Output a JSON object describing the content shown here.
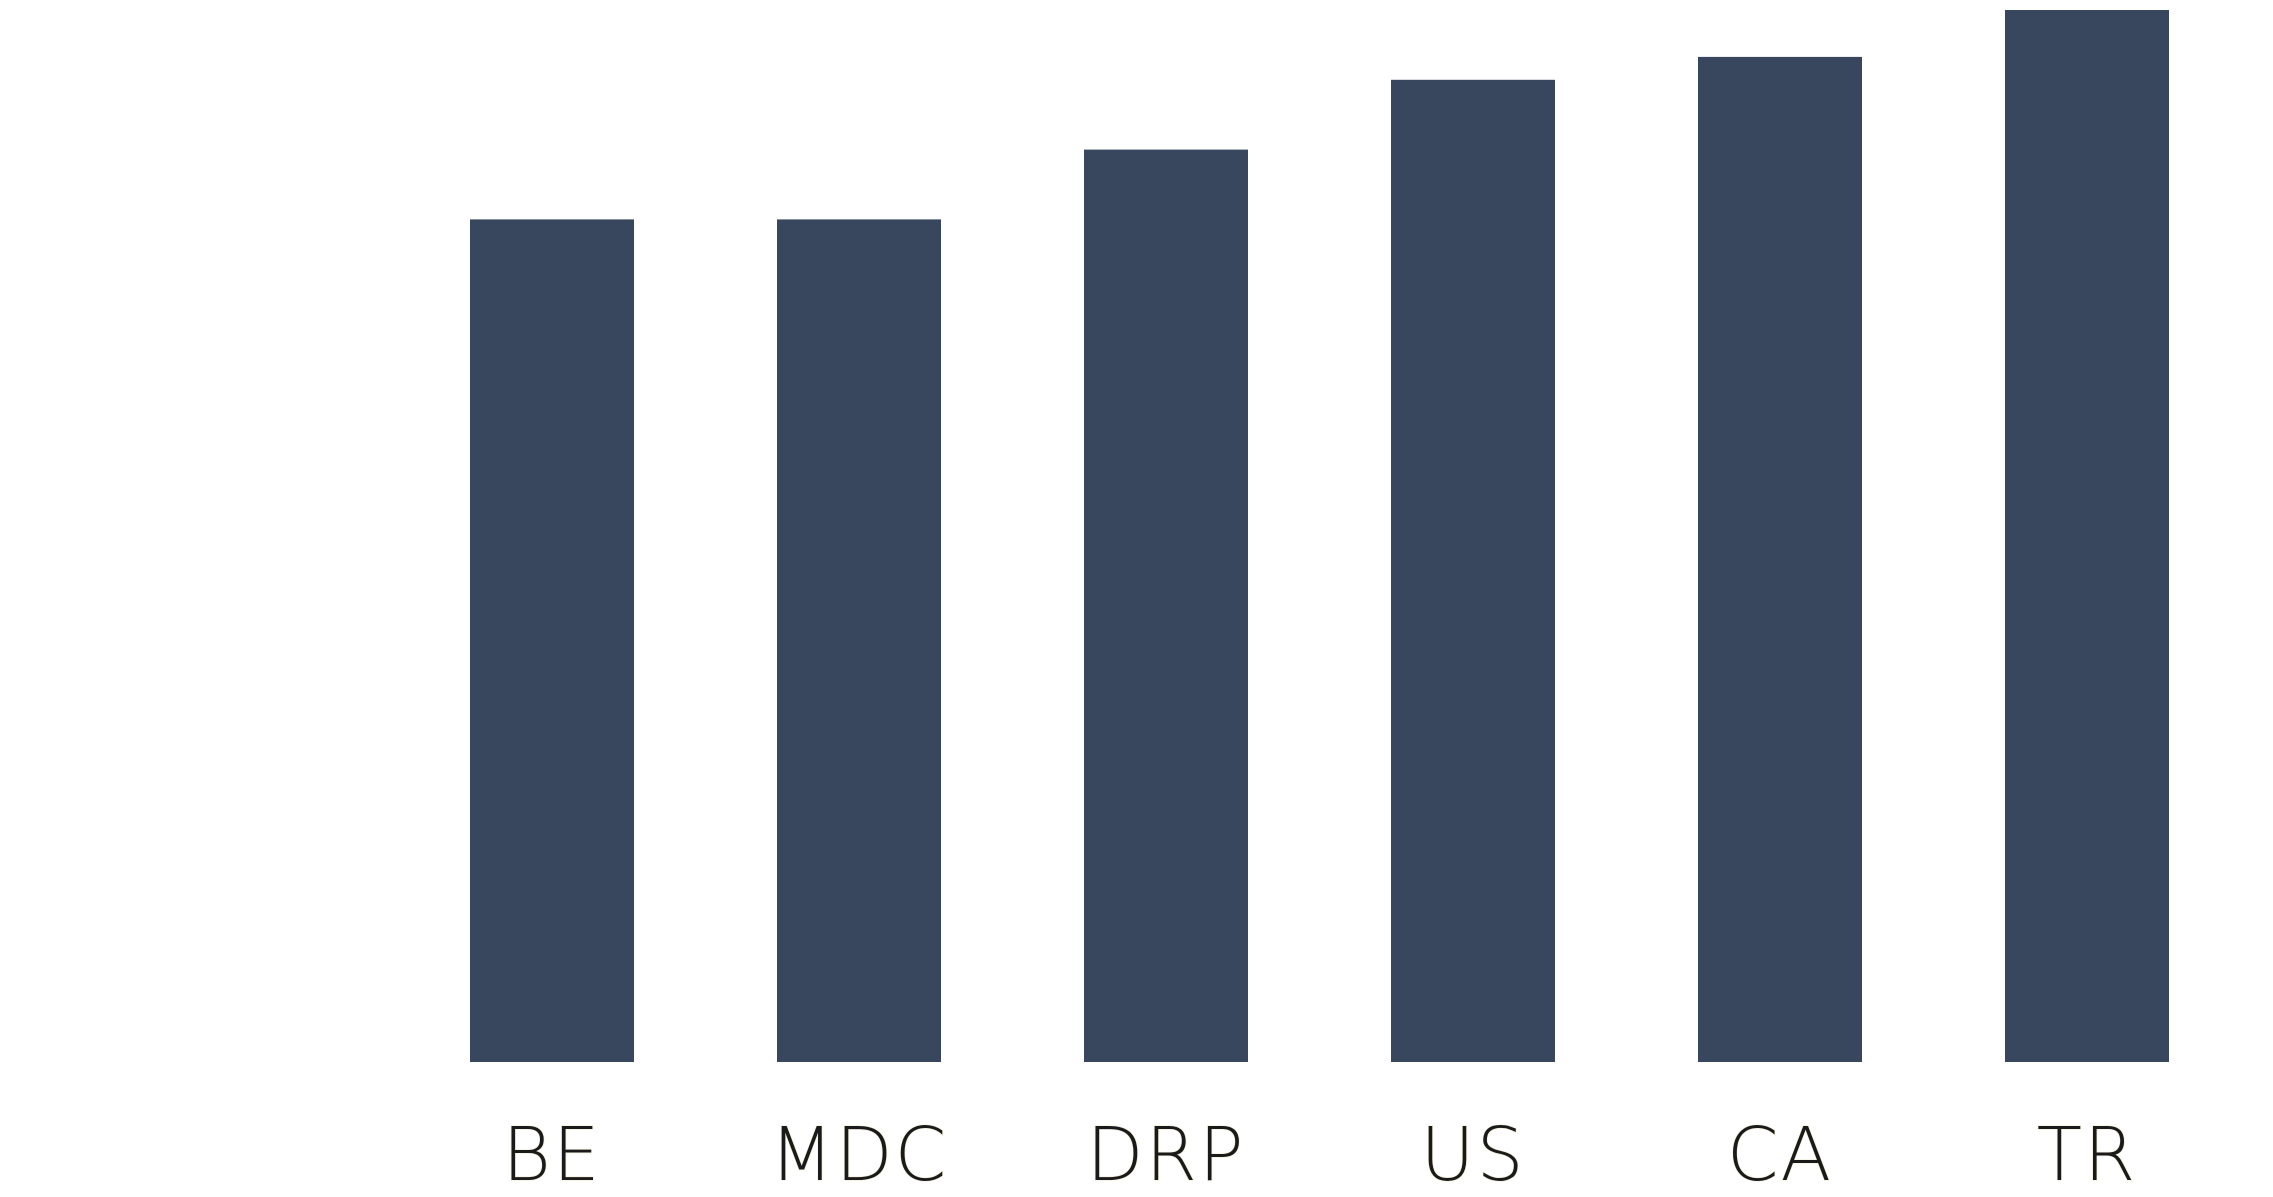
{
  "chart_data": {
    "type": "bar",
    "categories": [
      "BE",
      "MDC",
      "DRP",
      "US",
      "CA",
      "TR"
    ],
    "values": [
      84.5,
      84.5,
      91.5,
      98.5,
      100.8,
      105.5
    ],
    "title": "",
    "xlabel": "",
    "ylabel": "",
    "ylim": [
      0,
      106
    ],
    "grid": false,
    "legend": "none",
    "colors": {
      "bar": "#38475e",
      "label": "#1a1a1a",
      "background": "#ffffff"
    }
  }
}
